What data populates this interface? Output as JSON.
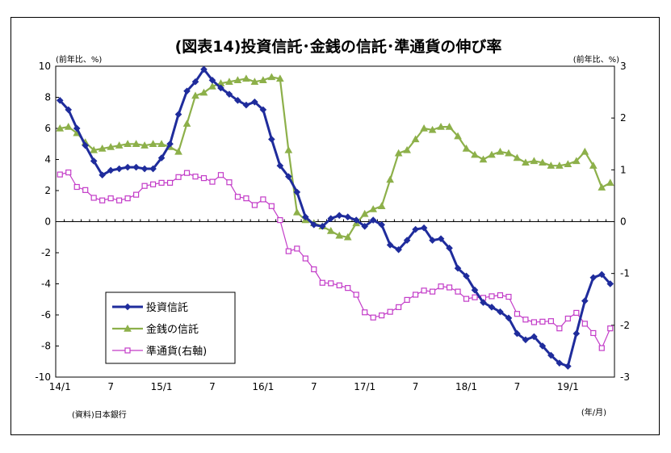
{
  "chart_data": {
    "type": "line",
    "title": "(図表14)投資信託･金銭の信託･準通貨の伸び率",
    "left_unit": "(前年比、%)",
    "right_unit": "(前年比、%)",
    "source": "(資料)日本銀行",
    "x_unit": "(年/月)",
    "left_ylim": [
      -10,
      10
    ],
    "left_ticks": [
      "10",
      "8",
      "6",
      "4",
      "2",
      "0",
      "-2",
      "-4",
      "-6",
      "-8",
      "-10"
    ],
    "right_ylim": [
      -3,
      3
    ],
    "right_ticks": [
      "3",
      "2",
      "1",
      "0",
      "-1",
      "-2",
      "-3"
    ],
    "x_tick_labels": [
      {
        "i": 0,
        "label": "14/1"
      },
      {
        "i": 6,
        "label": "7"
      },
      {
        "i": 12,
        "label": "15/1"
      },
      {
        "i": 18,
        "label": "7"
      },
      {
        "i": 24,
        "label": "16/1"
      },
      {
        "i": 30,
        "label": "7"
      },
      {
        "i": 36,
        "label": "17/1"
      },
      {
        "i": 42,
        "label": "7"
      },
      {
        "i": 48,
        "label": "18/1"
      },
      {
        "i": 54,
        "label": "7"
      },
      {
        "i": 60,
        "label": "19/1"
      }
    ],
    "n_points": 66,
    "legend_placement": "lower-left",
    "grid": false,
    "series": [
      {
        "name": "投資信託",
        "axis": "left",
        "color": "#1f2c9c",
        "marker": "diamond",
        "values": [
          7.8,
          7.2,
          6.0,
          4.9,
          3.9,
          3.0,
          3.3,
          3.4,
          3.5,
          3.5,
          3.4,
          3.4,
          4.1,
          5.0,
          6.9,
          8.4,
          9.0,
          9.8,
          9.1,
          8.6,
          8.2,
          7.8,
          7.5,
          7.7,
          7.2,
          5.3,
          3.6,
          2.9,
          1.9,
          0.3,
          -0.2,
          -0.3,
          0.2,
          0.4,
          0.3,
          0.1,
          -0.3,
          0.1,
          -0.2,
          -1.5,
          -1.8,
          -1.2,
          -0.5,
          -0.4,
          -1.2,
          -1.1,
          -1.7,
          -3.0,
          -3.5,
          -4.4,
          -5.2,
          -5.5,
          -5.8,
          -6.2,
          -7.2,
          -7.6,
          -7.4,
          -8.0,
          -8.6,
          -9.1,
          -9.3,
          -7.2,
          -5.1,
          -3.6,
          -3.4,
          -4.0
        ]
      },
      {
        "name": "金銭の信託",
        "axis": "left",
        "color": "#8db04a",
        "marker": "triangle",
        "values": [
          6.0,
          6.1,
          5.7,
          5.1,
          4.6,
          4.7,
          4.8,
          4.9,
          5.0,
          5.0,
          4.9,
          5.0,
          5.0,
          4.8,
          4.5,
          6.3,
          8.1,
          8.3,
          8.7,
          8.9,
          9.0,
          9.1,
          9.2,
          9.0,
          9.1,
          9.3,
          9.2,
          4.6,
          0.6,
          0.1,
          -0.1,
          -0.3,
          -0.6,
          -0.9,
          -1.0,
          -0.1,
          0.5,
          0.8,
          1.0,
          2.7,
          4.4,
          4.6,
          5.3,
          6.0,
          5.9,
          6.1,
          6.1,
          5.5,
          4.7,
          4.3,
          4.0,
          4.3,
          4.5,
          4.4,
          4.1,
          3.8,
          3.9,
          3.8,
          3.6,
          3.6,
          3.7,
          3.9,
          4.5,
          3.6,
          2.2,
          2.5
        ]
      },
      {
        "name": "準通貨(右軸)",
        "axis": "right",
        "color": "#c33cc8",
        "marker": "square",
        "values": [
          0.91,
          0.95,
          0.67,
          0.61,
          0.46,
          0.41,
          0.45,
          0.41,
          0.45,
          0.52,
          0.69,
          0.72,
          0.75,
          0.75,
          0.86,
          0.94,
          0.87,
          0.84,
          0.77,
          0.9,
          0.76,
          0.48,
          0.45,
          0.32,
          0.43,
          0.3,
          0.03,
          -0.57,
          -0.52,
          -0.71,
          -0.92,
          -1.18,
          -1.19,
          -1.23,
          -1.28,
          -1.41,
          -1.75,
          -1.85,
          -1.81,
          -1.74,
          -1.65,
          -1.51,
          -1.41,
          -1.33,
          -1.35,
          -1.25,
          -1.27,
          -1.35,
          -1.49,
          -1.46,
          -1.47,
          -1.44,
          -1.42,
          -1.45,
          -1.78,
          -1.89,
          -1.94,
          -1.93,
          -1.92,
          -2.06,
          -1.87,
          -1.76,
          -1.97,
          -2.15,
          -2.44,
          -2.06
        ]
      }
    ]
  }
}
